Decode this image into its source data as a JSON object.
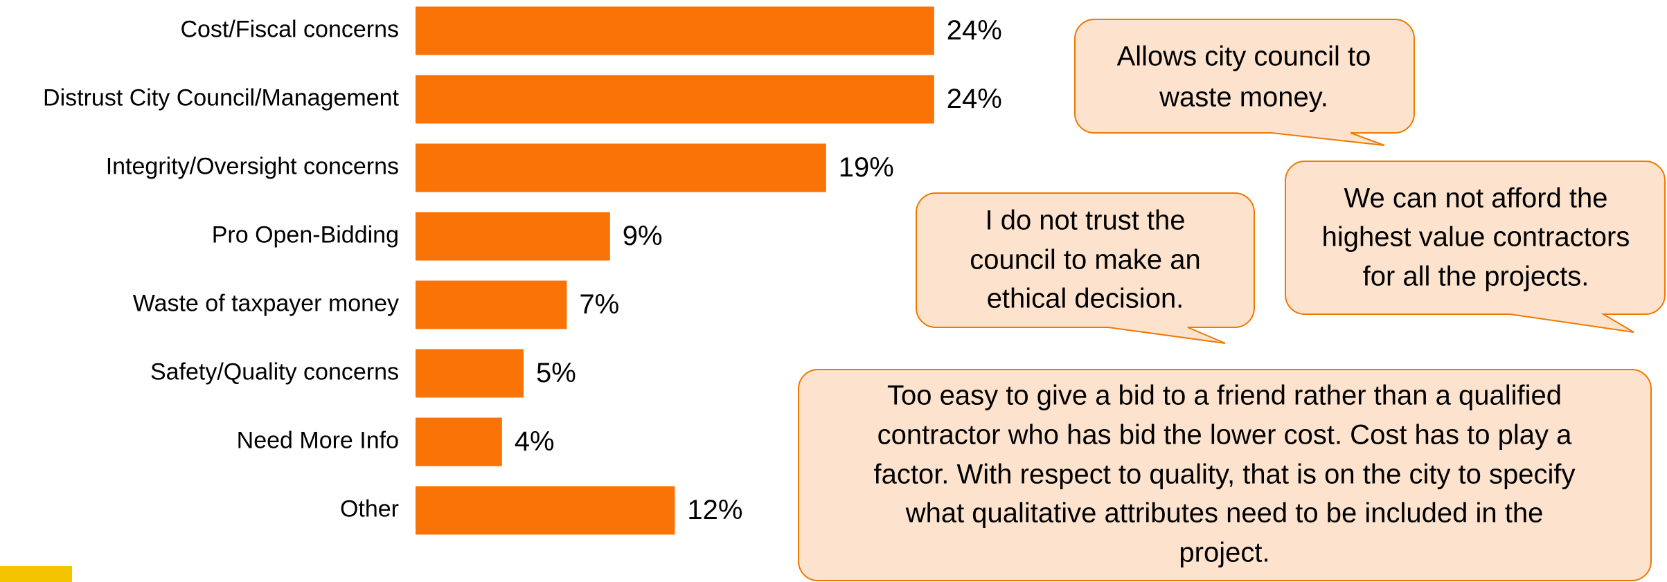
{
  "chart_data": {
    "type": "bar",
    "orientation": "horizontal",
    "categories": [
      "Cost/Fiscal concerns",
      "Distrust City Council/Management",
      "Integrity/Oversight concerns",
      "Pro Open-Bidding",
      "Waste of taxpayer money",
      "Safety/Quality concerns",
      "Need More Info",
      "Other"
    ],
    "values": [
      24,
      24,
      19,
      9,
      7,
      5,
      4,
      12
    ],
    "value_labels": [
      "24%",
      "24%",
      "19%",
      "9%",
      "7%",
      "5%",
      "4%",
      "12%"
    ],
    "color": "#f97306",
    "annotations": [
      {
        "lines": [
          "Allows city council to",
          "waste money."
        ]
      },
      {
        "lines": [
          "I do not trust the",
          "council to make an",
          "ethical decision."
        ]
      },
      {
        "lines": [
          "We can not afford the",
          "highest value contractors",
          "for all the projects."
        ]
      },
      {
        "lines": [
          "Too easy to give a bid to a friend rather than a qualified",
          "contractor who has bid the lower cost. Cost has to play a",
          "factor. With respect to quality, that is on the city to specify",
          "what qualitative attributes need to be included in the",
          "project."
        ]
      }
    ]
  }
}
